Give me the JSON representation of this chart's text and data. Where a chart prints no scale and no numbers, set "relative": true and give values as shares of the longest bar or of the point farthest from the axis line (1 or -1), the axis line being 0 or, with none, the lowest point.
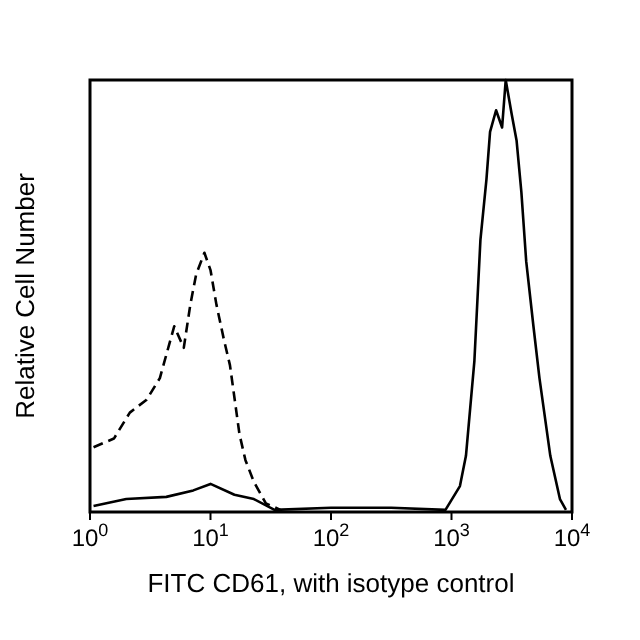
{
  "chart_data": {
    "type": "line",
    "relative": true,
    "log": "x",
    "xlabel": "FITC CD61, with isotype control",
    "ylabel": "Relative Cell Number",
    "xlim": [
      1,
      10000
    ],
    "xticks": [
      {
        "value": 1,
        "label": "10$^{0}$"
      },
      {
        "value": 10,
        "label": "10$^{1}$"
      },
      {
        "value": 100,
        "label": "10$^{2}$"
      },
      {
        "value": 1000,
        "label": "10$^{3}$"
      },
      {
        "value": 10000,
        "label": "10$^{4}$"
      }
    ],
    "grid": false,
    "marker": "none",
    "series": [
      {
        "color": "#000000",
        "line_style": "solid",
        "x": [
          1.07,
          2.0,
          4.3,
          7.2,
          10,
          15.8,
          22.9,
          34,
          100,
          316,
          891,
          1175,
          1318,
          1549,
          1738,
          1950,
          2089,
          2344,
          2630,
          2818,
          3162,
          3467,
          3802,
          4169,
          4786,
          5370,
          6607,
          7943,
          8913
        ],
        "values": [
          0.014,
          0.03,
          0.035,
          0.05,
          0.065,
          0.04,
          0.03,
          0.005,
          0.01,
          0.01,
          0.005,
          0.06,
          0.13,
          0.35,
          0.63,
          0.77,
          0.88,
          0.93,
          0.89,
          1.0,
          0.92,
          0.86,
          0.74,
          0.58,
          0.43,
          0.31,
          0.13,
          0.03,
          0.005
        ]
      },
      {
        "color": "#000000",
        "line_style": "dashed",
        "x": [
          1.07,
          1.58,
          2.14,
          2.95,
          3.8,
          5.0,
          6.0,
          6.8,
          7.6,
          8.9,
          10,
          11.2,
          12.9,
          14.5,
          17.4,
          19.5,
          22.9,
          28.8,
          38
        ],
        "values": [
          0.15,
          0.17,
          0.23,
          0.26,
          0.31,
          0.43,
          0.38,
          0.48,
          0.55,
          0.6,
          0.56,
          0.48,
          0.4,
          0.34,
          0.18,
          0.12,
          0.07,
          0.02,
          0.005
        ]
      }
    ]
  }
}
